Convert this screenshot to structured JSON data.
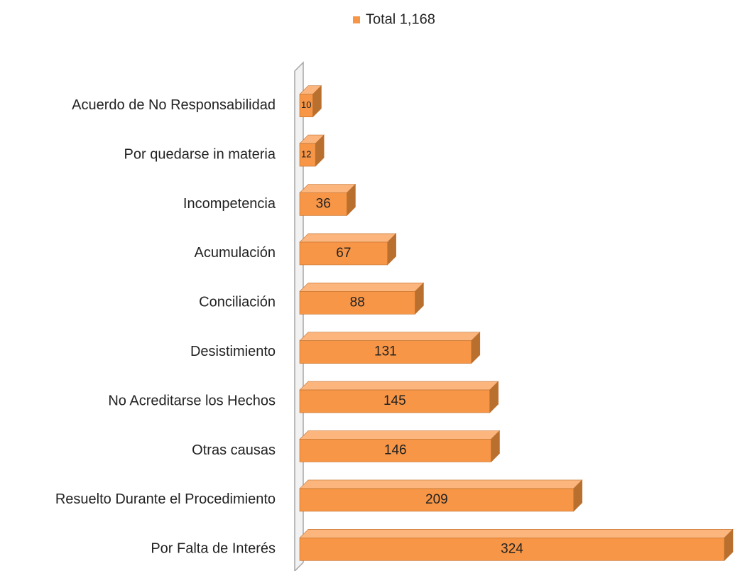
{
  "chart_data": {
    "type": "bar",
    "orientation": "horizontal",
    "categories": [
      "Acuerdo de No Responsabilidad",
      "Por quedarse in materia",
      "Incompetencia",
      "Acumulación",
      "Conciliación",
      "Desistimiento",
      "No Acreditarse los Hechos",
      "Otras causas",
      "Resuelto Durante el Procedimiento",
      "Por Falta de Interés"
    ],
    "series": [
      {
        "name": "Total 1,168",
        "color": "#f79646",
        "values": [
          10,
          12,
          36,
          67,
          88,
          131,
          145,
          146,
          209,
          324
        ]
      }
    ],
    "legend": "top"
  }
}
